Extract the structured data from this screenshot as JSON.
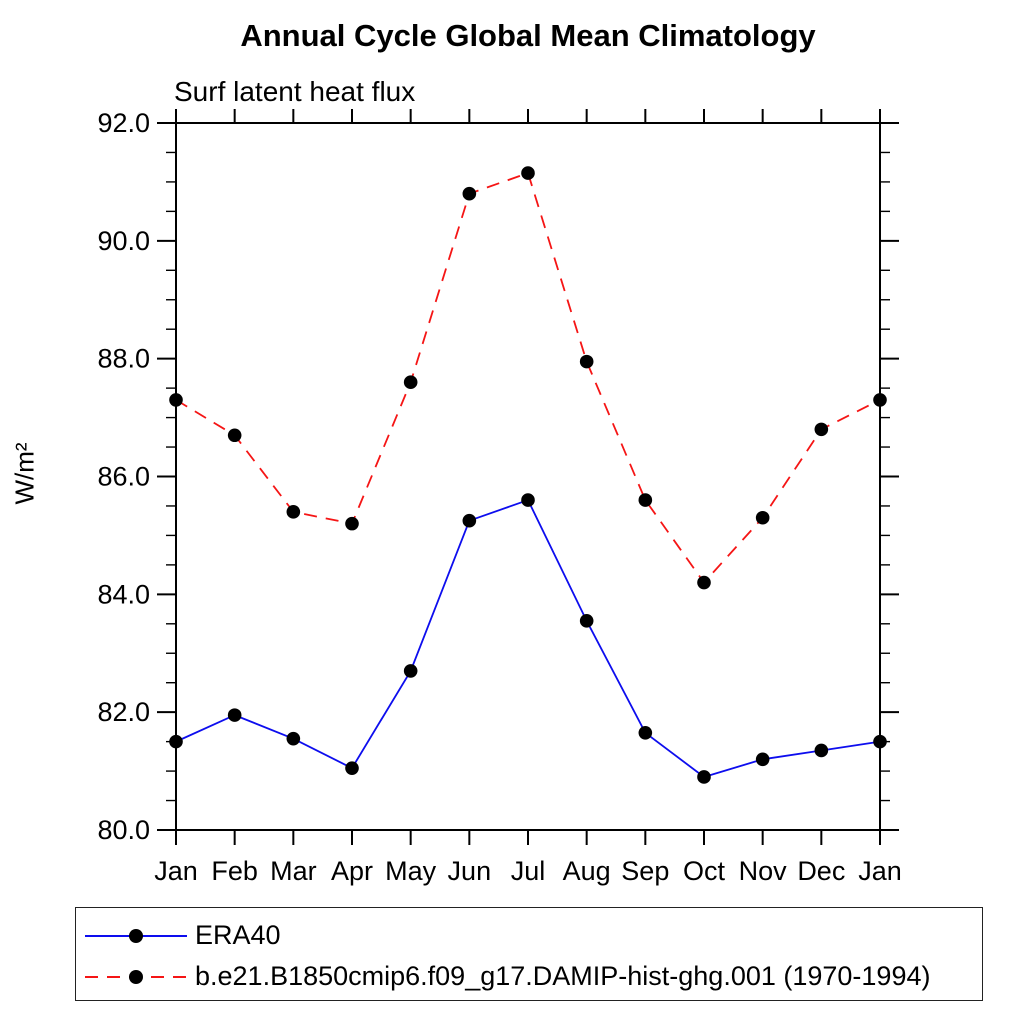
{
  "chart_data": {
    "type": "line",
    "title": "Annual Cycle Global Mean Climatology",
    "subtitle": "Surf latent heat flux",
    "ylabel": "W/m²",
    "xlabel": "",
    "x_categories": [
      "Jan",
      "Feb",
      "Mar",
      "Apr",
      "May",
      "Jun",
      "Jul",
      "Aug",
      "Sep",
      "Oct",
      "Nov",
      "Dec",
      "Jan"
    ],
    "ylim": [
      80.0,
      92.0
    ],
    "ytick_step": 2.0,
    "ytick_minor_step": 0.5,
    "ytick_labels": [
      "80.0",
      "82.0",
      "84.0",
      "86.0",
      "88.0",
      "90.0",
      "92.0"
    ],
    "grid": false,
    "legend_position": "bottom-left-box",
    "marker_color": "#000000",
    "axis_color": "#000000",
    "series": [
      {
        "name": "ERA40",
        "color": "#0d0dee",
        "line_style": "solid",
        "marker": "filled-circle",
        "values": [
          81.5,
          81.95,
          81.55,
          81.05,
          82.7,
          85.25,
          85.6,
          83.55,
          81.65,
          80.9,
          81.2,
          81.35,
          81.5
        ]
      },
      {
        "name": "b.e21.B1850cmip6.f09_g17.DAMIP-hist-ghg.001 (1970-1994)",
        "color": "#f51515",
        "line_style": "dashed",
        "marker": "filled-circle",
        "values": [
          87.3,
          86.7,
          85.4,
          85.2,
          87.6,
          90.8,
          91.15,
          87.95,
          85.6,
          84.2,
          85.3,
          86.8,
          87.3
        ]
      }
    ]
  }
}
